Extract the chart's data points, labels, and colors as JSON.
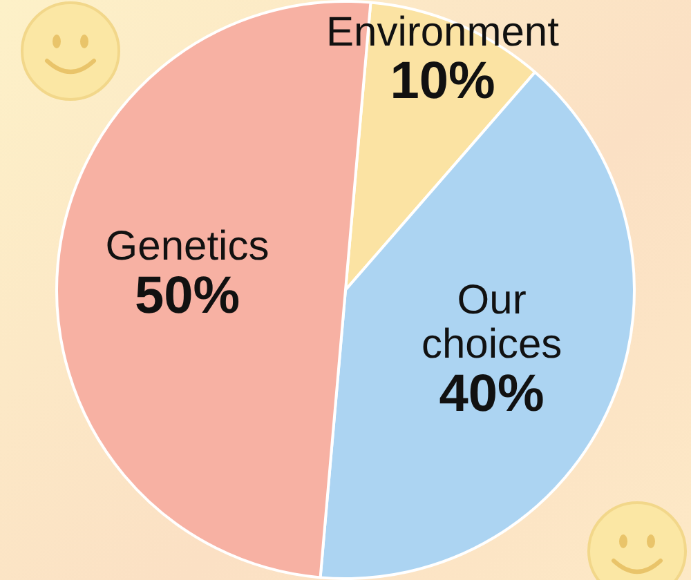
{
  "chart_data": {
    "type": "pie",
    "categories": [
      "Environment",
      "Our choices",
      "Genetics"
    ],
    "values": [
      10,
      40,
      50
    ],
    "value_labels": [
      "10%",
      "40%",
      "50%"
    ],
    "colors": [
      "#fbe3a3",
      "#acd4f2",
      "#f7b1a3"
    ]
  }
}
